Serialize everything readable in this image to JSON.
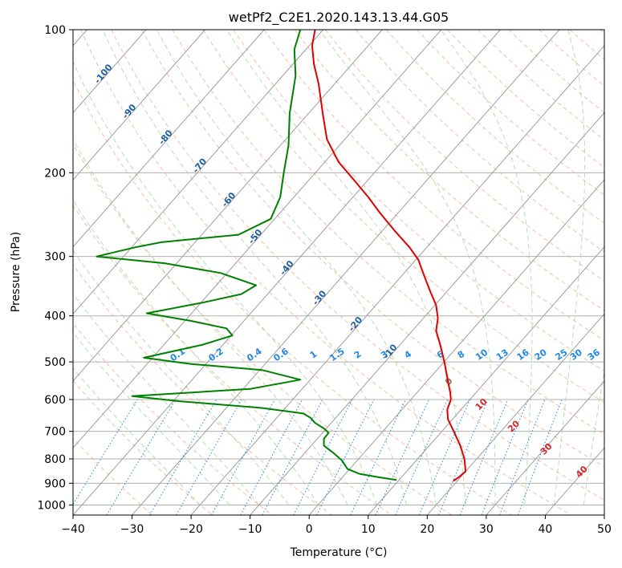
{
  "chart_data": {
    "type": "line",
    "title": "wetPf2_C2E1.2020.143.13.44.G05",
    "xlabel": "Temperature (°C)",
    "ylabel": "Pressure (hPa)",
    "xlim": [
      -40,
      50
    ],
    "ylim": [
      1050,
      100
    ],
    "y_scale": "log",
    "x_ticks": [
      -40,
      -30,
      -20,
      -10,
      0,
      10,
      20,
      30,
      40,
      50
    ],
    "x_tick_labels": [
      "−40",
      "−30",
      "−20",
      "−10",
      "0",
      "10",
      "20",
      "30",
      "40",
      "50"
    ],
    "y_ticks": [
      100,
      200,
      300,
      400,
      500,
      600,
      700,
      800,
      900,
      1000
    ],
    "y_tick_labels": [
      "100",
      "200",
      "300",
      "400",
      "500",
      "600",
      "700",
      "800",
      "900",
      "1000"
    ],
    "grid": true,
    "colors": {
      "temperature": "#e00000",
      "dewpoint": "#008000",
      "isotherm": "#9e9e9e",
      "dry_adiabat": "#f4a582",
      "moist_adiabat": "#a6d8a6",
      "mixing_ratio": "#1e88e5",
      "skewed_label": "#1f5fa0",
      "moist_label": "#d62728",
      "zero_label": "#7a7a7a"
    },
    "series": [
      {
        "key": "temperature",
        "points": [
          [
            1,
            100
          ],
          [
            0.5,
            108
          ],
          [
            0.8,
            118
          ],
          [
            1.6,
            130
          ],
          [
            2.3,
            150
          ],
          [
            3,
            170
          ],
          [
            5,
            190
          ],
          [
            7.7,
            208
          ],
          [
            10,
            225
          ],
          [
            12,
            243
          ],
          [
            14.5,
            265
          ],
          [
            17,
            287
          ],
          [
            18.5,
            305
          ],
          [
            19.5,
            330
          ],
          [
            20.5,
            355
          ],
          [
            21.5,
            380
          ],
          [
            21.8,
            405
          ],
          [
            21.5,
            430
          ],
          [
            22.2,
            460
          ],
          [
            22.9,
            500
          ],
          [
            23.4,
            540
          ],
          [
            23.9,
            580
          ],
          [
            24,
            600
          ],
          [
            23.4,
            630
          ],
          [
            23.5,
            660
          ],
          [
            24.5,
            700
          ],
          [
            25.6,
            750
          ],
          [
            26.3,
            800
          ],
          [
            26.5,
            850
          ],
          [
            25.3,
            875
          ],
          [
            24.4,
            890
          ]
        ]
      },
      {
        "key": "dewpoint",
        "points": [
          [
            -1.5,
            100
          ],
          [
            -2.5,
            110
          ],
          [
            -2.3,
            125
          ],
          [
            -3.3,
            150
          ],
          [
            -3.5,
            175
          ],
          [
            -4.3,
            200
          ],
          [
            -4.9,
            225
          ],
          [
            -6.5,
            250
          ],
          [
            -12,
            270
          ],
          [
            -25,
            280
          ],
          [
            -29.5,
            287
          ],
          [
            -36,
            300
          ],
          [
            -24.5,
            310
          ],
          [
            -15,
            325
          ],
          [
            -9,
            345
          ],
          [
            -11.5,
            360
          ],
          [
            -18,
            375
          ],
          [
            -27.5,
            395
          ],
          [
            -20,
            410
          ],
          [
            -14,
            425
          ],
          [
            -13,
            440
          ],
          [
            -18,
            460
          ],
          [
            -28,
            490
          ],
          [
            -20,
            505
          ],
          [
            -8,
            520
          ],
          [
            -1.5,
            545
          ],
          [
            -10,
            570
          ],
          [
            -30,
            590
          ],
          [
            -22,
            605
          ],
          [
            -8,
            625
          ],
          [
            -1,
            642
          ],
          [
            0.2,
            655
          ],
          [
            1,
            672
          ],
          [
            2.5,
            690
          ],
          [
            3.3,
            705
          ],
          [
            2.5,
            725
          ],
          [
            2.5,
            750
          ],
          [
            4,
            775
          ],
          [
            5.5,
            805
          ],
          [
            6.5,
            840
          ],
          [
            8.5,
            860
          ],
          [
            12,
            875
          ],
          [
            14.8,
            886
          ]
        ]
      }
    ],
    "skewed_labels": [
      {
        "text": "-100",
        "t": -100,
        "p": 125
      },
      {
        "text": "-90",
        "t": -90,
        "p": 150
      },
      {
        "text": "-80",
        "t": -80,
        "p": 170
      },
      {
        "text": "-70",
        "t": -70,
        "p": 195
      },
      {
        "text": "-60",
        "t": -60,
        "p": 230
      },
      {
        "text": "-50",
        "t": -50,
        "p": 275
      },
      {
        "text": "-40",
        "t": -40,
        "p": 320
      },
      {
        "text": "-30",
        "t": -30,
        "p": 370
      },
      {
        "text": "-20",
        "t": -20,
        "p": 420
      },
      {
        "text": "-10",
        "t": -10,
        "p": 480
      }
    ],
    "mixing_ratio_labels": [
      "0.1",
      "0.2",
      "0.4",
      "0.6",
      "1",
      "1.5",
      "2",
      "3",
      "4",
      "6",
      "8",
      "10",
      "13",
      "16",
      "20",
      "25",
      "30",
      "36"
    ],
    "mixing_ratio_x": [
      -22,
      -15.5,
      -9,
      -4.5,
      1,
      5,
      8.5,
      13,
      17,
      22.5,
      26,
      29.5,
      33,
      36.5,
      39.5,
      43,
      45.5,
      48.5
    ],
    "moist_labels": [
      {
        "text": "0",
        "x": 24,
        "p": 555
      },
      {
        "text": "10",
        "x": 29.5,
        "p": 620
      },
      {
        "text": "20",
        "x": 35,
        "p": 690
      },
      {
        "text": "30",
        "x": 40.5,
        "p": 770
      },
      {
        "text": "40",
        "x": 46.5,
        "p": 860
      }
    ]
  }
}
